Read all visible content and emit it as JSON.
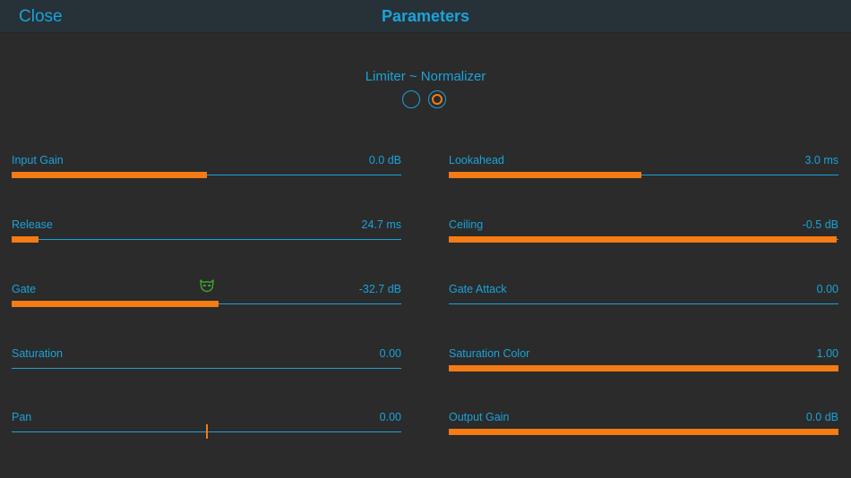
{
  "header": {
    "close_label": "Close",
    "title": "Parameters"
  },
  "mode": {
    "label": "Limiter ~ Normalizer",
    "selected_index": 1
  },
  "colors": {
    "accent": "#1aa3d9",
    "fill": "#f57b14",
    "gate_icon": "#3ea830",
    "background": "#2b2b2b",
    "header": "#263238"
  },
  "params": [
    {
      "label": "Input Gain",
      "value": "0.0 dB",
      "level": 0.5
    },
    {
      "label": "Lookahead",
      "value": "3.0 ms",
      "level": 0.495
    },
    {
      "label": "Release",
      "value": "24.7 ms",
      "level": 0.07
    },
    {
      "label": "Ceiling",
      "value": "-0.5 dB",
      "level": 0.995
    },
    {
      "label": "Gate",
      "value": "-32.7 dB",
      "level": 0.53,
      "icon": "mask-icon"
    },
    {
      "label": "Gate Attack",
      "value": "0.00",
      "level": 0.0
    },
    {
      "label": "Saturation",
      "value": "0.00",
      "level": 0.0
    },
    {
      "label": "Saturation Color",
      "value": "1.00",
      "level": 1.0
    },
    {
      "label": "Pan",
      "value": "0.00",
      "level": 0.5,
      "style": "center"
    },
    {
      "label": "Output Gain",
      "value": "0.0 dB",
      "level": 1.0
    }
  ]
}
